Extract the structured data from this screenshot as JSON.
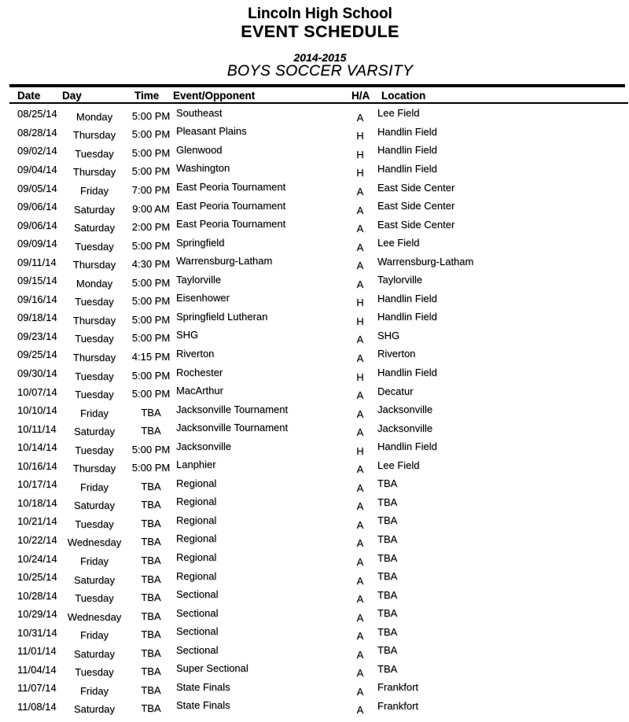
{
  "page": {
    "school": "Lincoln High School",
    "title": "EVENT SCHEDULE",
    "season": "2014-2015",
    "team": "BOYS SOCCER VARSITY"
  },
  "table": {
    "columns": [
      "Date",
      "Day",
      "Time",
      "Event/Opponent",
      "H/A",
      "Location"
    ],
    "rows": [
      {
        "date": "08/25/14",
        "day": "Monday",
        "time": "5:00 PM",
        "event": "Southeast",
        "ha": "A",
        "location": "Lee Field"
      },
      {
        "date": "08/28/14",
        "day": "Thursday",
        "time": "5:00 PM",
        "event": "Pleasant Plains",
        "ha": "H",
        "location": "Handlin Field"
      },
      {
        "date": "09/02/14",
        "day": "Tuesday",
        "time": "5:00 PM",
        "event": "Glenwood",
        "ha": "H",
        "location": "Handlin Field"
      },
      {
        "date": "09/04/14",
        "day": "Thursday",
        "time": "5:00 PM",
        "event": "Washington",
        "ha": "H",
        "location": "Handlin Field"
      },
      {
        "date": "09/05/14",
        "day": "Friday",
        "time": "7:00 PM",
        "event": "East Peoria Tournament",
        "ha": "A",
        "location": "East Side Center"
      },
      {
        "date": "09/06/14",
        "day": "Saturday",
        "time": "9:00 AM",
        "event": "East Peoria Tournament",
        "ha": "A",
        "location": "East Side Center"
      },
      {
        "date": "09/06/14",
        "day": "Saturday",
        "time": "2:00 PM",
        "event": "East Peoria Tournament",
        "ha": "A",
        "location": "East Side Center"
      },
      {
        "date": "09/09/14",
        "day": "Tuesday",
        "time": "5:00 PM",
        "event": "Springfield",
        "ha": "A",
        "location": "Lee Field"
      },
      {
        "date": "09/11/14",
        "day": "Thursday",
        "time": "4:30 PM",
        "event": "Warrensburg-Latham",
        "ha": "A",
        "location": "Warrensburg-Latham"
      },
      {
        "date": "09/15/14",
        "day": "Monday",
        "time": "5:00 PM",
        "event": "Taylorville",
        "ha": "A",
        "location": "Taylorville"
      },
      {
        "date": "09/16/14",
        "day": "Tuesday",
        "time": "5:00 PM",
        "event": "Eisenhower",
        "ha": "H",
        "location": "Handlin Field"
      },
      {
        "date": "09/18/14",
        "day": "Thursday",
        "time": "5:00 PM",
        "event": "Springfield Lutheran",
        "ha": "H",
        "location": "Handlin Field"
      },
      {
        "date": "09/23/14",
        "day": "Tuesday",
        "time": "5:00 PM",
        "event": "SHG",
        "ha": "A",
        "location": "SHG"
      },
      {
        "date": "09/25/14",
        "day": "Thursday",
        "time": "4:15 PM",
        "event": "Riverton",
        "ha": "A",
        "location": "Riverton"
      },
      {
        "date": "09/30/14",
        "day": "Tuesday",
        "time": "5:00 PM",
        "event": "Rochester",
        "ha": "H",
        "location": "Handlin Field"
      },
      {
        "date": "10/07/14",
        "day": "Tuesday",
        "time": "5:00 PM",
        "event": "MacArthur",
        "ha": "A",
        "location": "Decatur"
      },
      {
        "date": "10/10/14",
        "day": "Friday",
        "time": "TBA",
        "event": "Jacksonville Tournament",
        "ha": "A",
        "location": "Jacksonville"
      },
      {
        "date": "10/11/14",
        "day": "Saturday",
        "time": "TBA",
        "event": "Jacksonville Tournament",
        "ha": "A",
        "location": "Jacksonville"
      },
      {
        "date": "10/14/14",
        "day": "Tuesday",
        "time": "5:00 PM",
        "event": "Jacksonville",
        "ha": "H",
        "location": "Handlin Field"
      },
      {
        "date": "10/16/14",
        "day": "Thursday",
        "time": "5:00 PM",
        "event": "Lanphier",
        "ha": "A",
        "location": "Lee Field"
      },
      {
        "date": "10/17/14",
        "day": "Friday",
        "time": "TBA",
        "event": "Regional",
        "ha": "A",
        "location": "TBA"
      },
      {
        "date": "10/18/14",
        "day": "Saturday",
        "time": "TBA",
        "event": "Regional",
        "ha": "A",
        "location": "TBA"
      },
      {
        "date": "10/21/14",
        "day": "Tuesday",
        "time": "TBA",
        "event": "Regional",
        "ha": "A",
        "location": "TBA"
      },
      {
        "date": "10/22/14",
        "day": "Wednesday",
        "time": "TBA",
        "event": "Regional",
        "ha": "A",
        "location": "TBA"
      },
      {
        "date": "10/24/14",
        "day": "Friday",
        "time": "TBA",
        "event": "Regional",
        "ha": "A",
        "location": "TBA"
      },
      {
        "date": "10/25/14",
        "day": "Saturday",
        "time": "TBA",
        "event": "Regional",
        "ha": "A",
        "location": "TBA"
      },
      {
        "date": "10/28/14",
        "day": "Tuesday",
        "time": "TBA",
        "event": "Sectional",
        "ha": "A",
        "location": "TBA"
      },
      {
        "date": "10/29/14",
        "day": "Wednesday",
        "time": "TBA",
        "event": "Sectional",
        "ha": "A",
        "location": "TBA"
      },
      {
        "date": "10/31/14",
        "day": "Friday",
        "time": "TBA",
        "event": "Sectional",
        "ha": "A",
        "location": "TBA"
      },
      {
        "date": "11/01/14",
        "day": "Saturday",
        "time": "TBA",
        "event": "Sectional",
        "ha": "A",
        "location": "TBA"
      },
      {
        "date": "11/04/14",
        "day": "Tuesday",
        "time": "TBA",
        "event": "Super Sectional",
        "ha": "A",
        "location": "TBA"
      },
      {
        "date": "11/07/14",
        "day": "Friday",
        "time": "TBA",
        "event": "State Finals",
        "ha": "A",
        "location": "Frankfort"
      },
      {
        "date": "11/08/14",
        "day": "Saturday",
        "time": "TBA",
        "event": "State Finals",
        "ha": "A",
        "location": "Frankfort"
      }
    ]
  }
}
